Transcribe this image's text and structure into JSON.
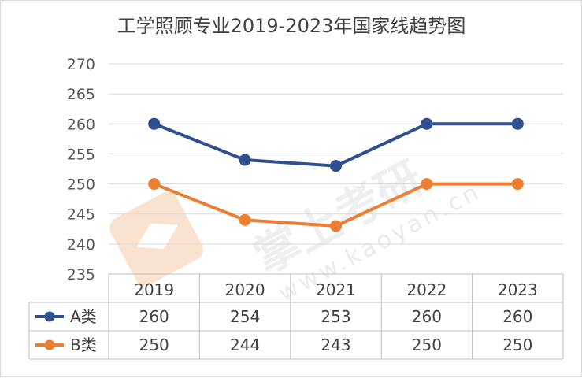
{
  "chart_data": {
    "type": "line",
    "title": "工学照顾专业2019-2023年国家线趋势图",
    "categories": [
      "2019",
      "2020",
      "2021",
      "2022",
      "2023"
    ],
    "ylim": [
      235,
      270
    ],
    "yticks": [
      235,
      240,
      245,
      250,
      255,
      260,
      265,
      270
    ],
    "grid": true,
    "legend": "data-table",
    "series": [
      {
        "name": "A类",
        "values": [
          260,
          254,
          253,
          260,
          260
        ],
        "color": "#2f4f8f"
      },
      {
        "name": "B类",
        "values": [
          250,
          244,
          243,
          250,
          250
        ],
        "color": "#ed7d31"
      }
    ]
  },
  "watermark": {
    "text": "掌上考研",
    "url": "www.kaoyan.cn"
  }
}
